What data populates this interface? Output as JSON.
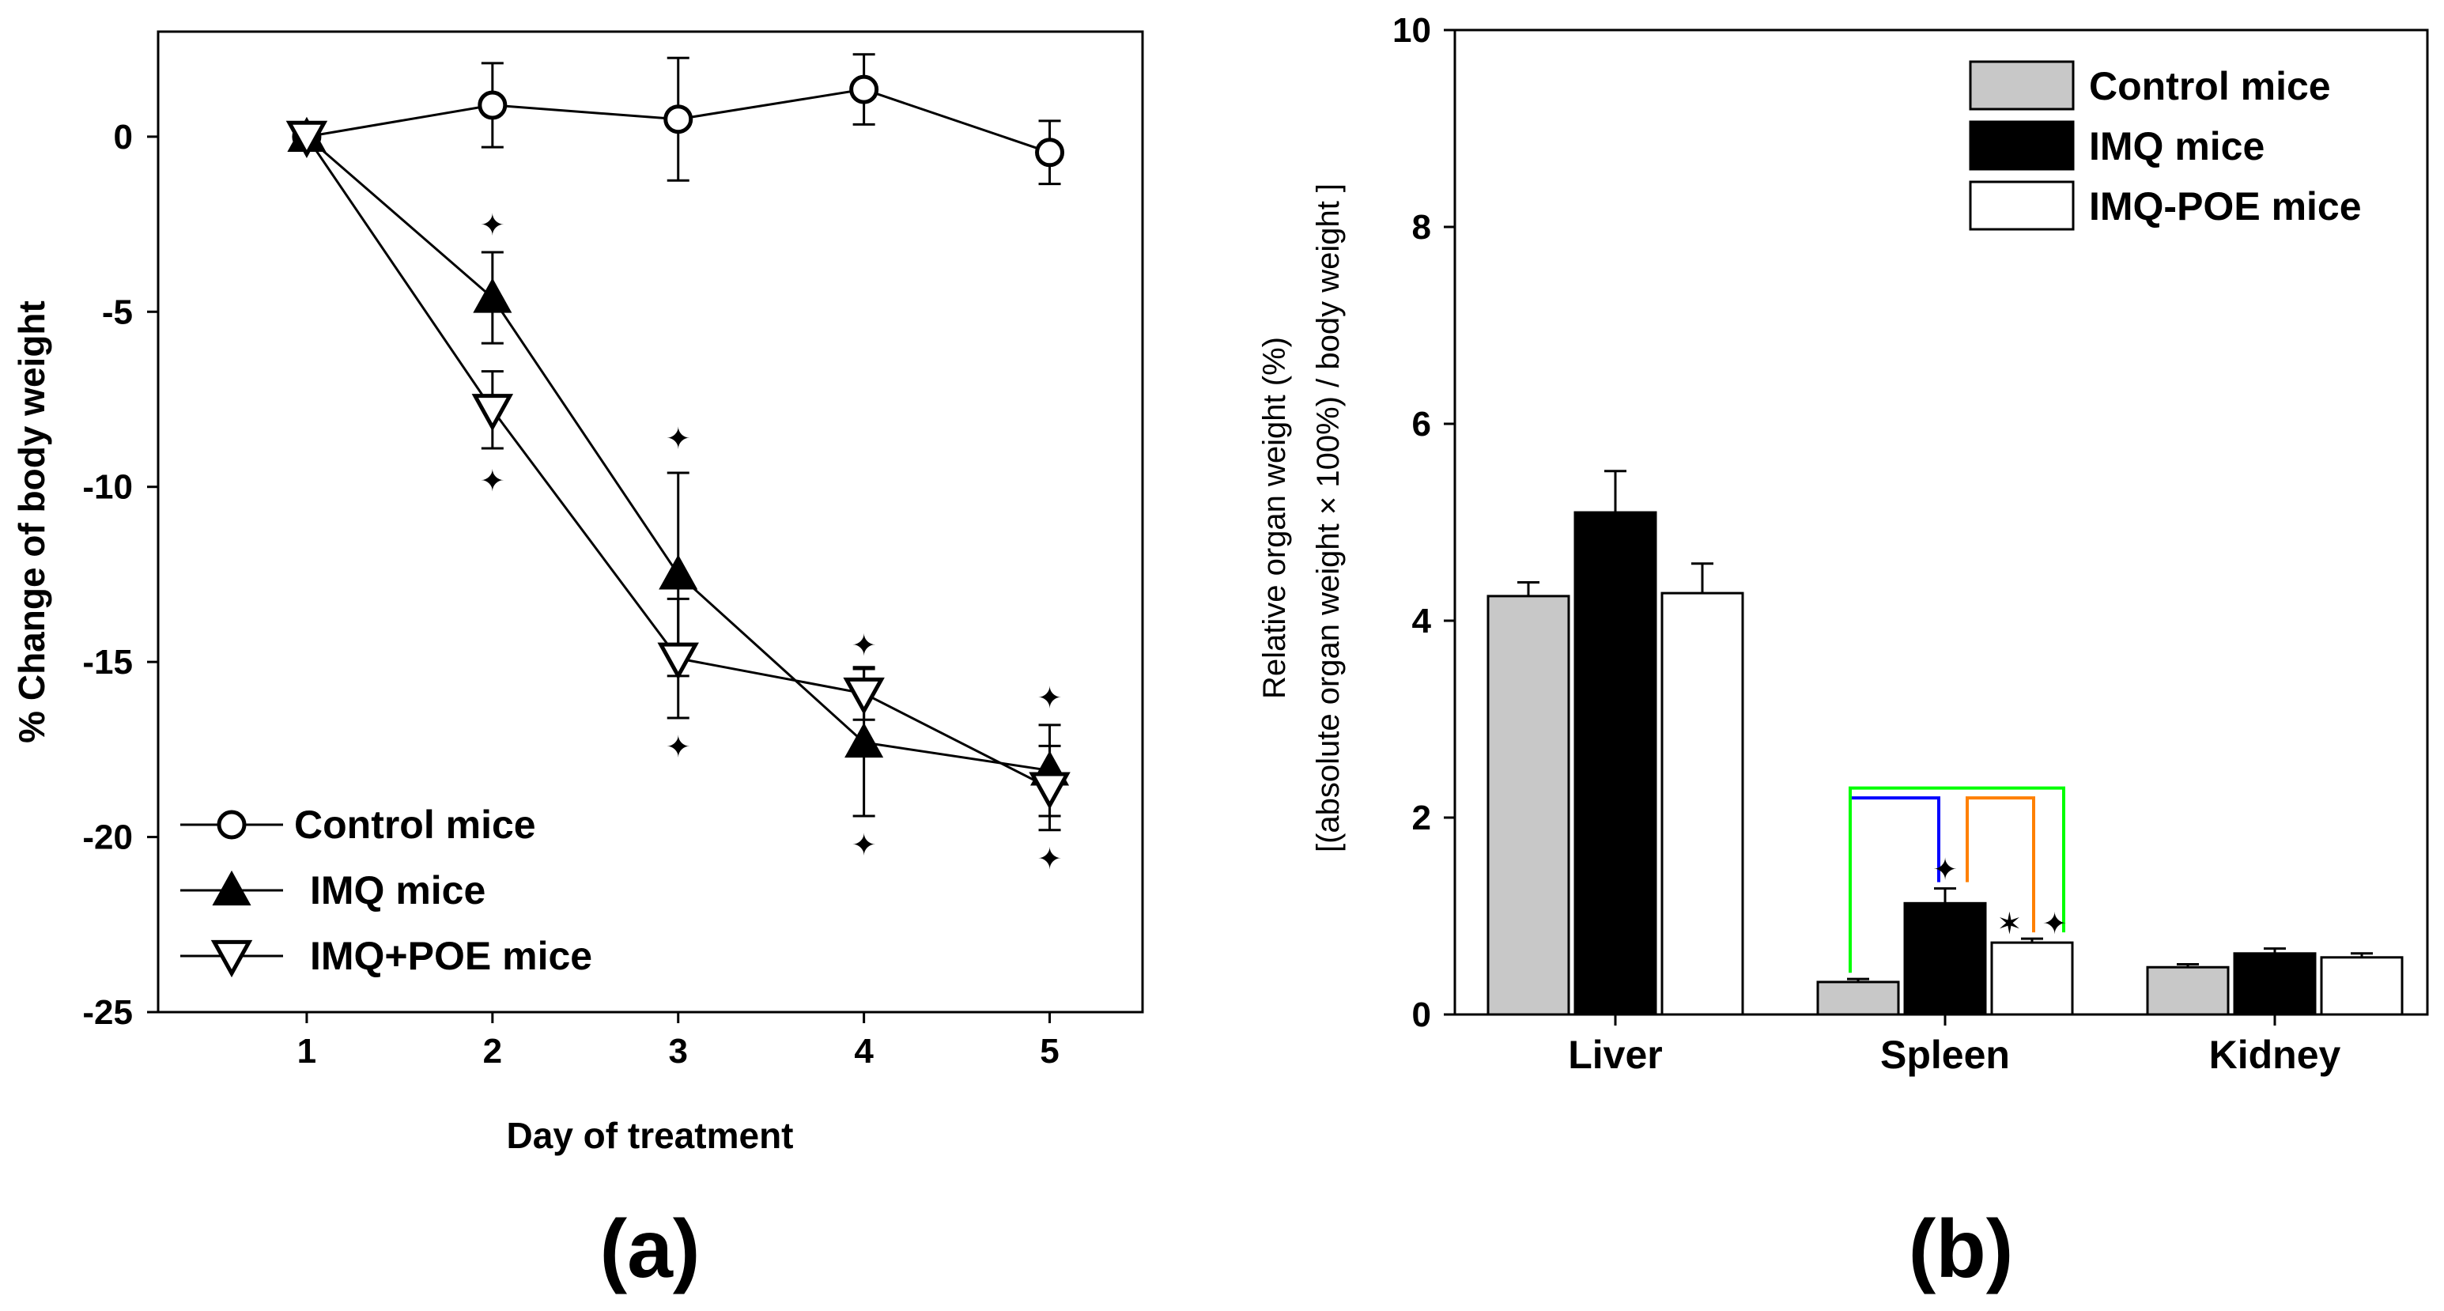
{
  "chart_data": [
    {
      "type": "line",
      "panel_label": "(a)",
      "xlabel": "Day of treatment",
      "ylabel": "% Change of body weight",
      "xlim": [
        0.2,
        5.5
      ],
      "ylim": [
        -25,
        3
      ],
      "x_ticks": [
        1,
        2,
        3,
        4,
        5
      ],
      "y_ticks": [
        0,
        -5,
        -10,
        -15,
        -20,
        -25
      ],
      "legend_position": "bottom-left",
      "series": [
        {
          "name": "Control mice",
          "marker": "open-circle",
          "x": [
            1,
            2,
            3,
            4,
            5
          ],
          "values": [
            0,
            0.9,
            0.5,
            1.35,
            -0.45
          ],
          "error": [
            0,
            1.2,
            1.75,
            1.0,
            0.9
          ]
        },
        {
          "name": "IMQ mice",
          "marker": "filled-triangle-up",
          "x": [
            1,
            2,
            3,
            4,
            5
          ],
          "values": [
            0,
            -4.6,
            -12.5,
            -17.3,
            -18.1
          ],
          "error": [
            0,
            1.3,
            2.9,
            2.1,
            1.3
          ]
        },
        {
          "name": "IMQ+POE mice",
          "marker": "open-triangle-down",
          "x": [
            1,
            2,
            3,
            4,
            5
          ],
          "values": [
            0,
            -7.8,
            -14.9,
            -15.9,
            -18.6
          ],
          "error": [
            0,
            1.1,
            1.7,
            0.75,
            1.2
          ]
        }
      ],
      "annotations": [
        {
          "symbol": "✦",
          "x": 2,
          "y": -2.5
        },
        {
          "symbol": "✦",
          "x": 2,
          "y": -9.8
        },
        {
          "symbol": "✦",
          "x": 3,
          "y": -8.6
        },
        {
          "symbol": "✦",
          "x": 3,
          "y": -17.4
        },
        {
          "symbol": "✦",
          "x": 4,
          "y": -14.5
        },
        {
          "symbol": "✦",
          "x": 4,
          "y": -20.2
        },
        {
          "symbol": "✦",
          "x": 5,
          "y": -16.0
        },
        {
          "symbol": "✦",
          "x": 5,
          "y": -20.6
        }
      ]
    },
    {
      "type": "bar",
      "panel_label": "(b)",
      "ylabel_line1": "Relative organ weight (%)",
      "ylabel_line2": "[(absolute organ weight × 100%) / body weight ]",
      "ylim": [
        0,
        10
      ],
      "y_ticks": [
        0,
        2,
        4,
        6,
        8,
        10
      ],
      "categories": [
        "Liver",
        "Spleen",
        "Kidney"
      ],
      "legend_position": "top-right",
      "series": [
        {
          "name": "Control mice",
          "color": "#c8c8c8",
          "values": [
            4.25,
            0.33,
            0.48
          ],
          "error": [
            0.14,
            0.03,
            0.03
          ]
        },
        {
          "name": "IMQ mice",
          "color": "#000000",
          "values": [
            5.1,
            1.13,
            0.62
          ],
          "error": [
            0.42,
            0.15,
            0.05
          ]
        },
        {
          "name": "IMQ-POE mice",
          "color": "#ffffff",
          "values": [
            4.28,
            0.73,
            0.58
          ],
          "error": [
            0.3,
            0.04,
            0.04
          ]
        }
      ],
      "significance_brackets": [
        {
          "from_series": 0,
          "to_series": 1,
          "category": "Spleen",
          "color": "#0000ff",
          "top": 2.2
        },
        {
          "from_series": 1,
          "to_series": 2,
          "category": "Spleen",
          "color": "#ff8000",
          "top": 2.2
        },
        {
          "from_series": 0,
          "to_series": 2,
          "category": "Spleen",
          "color": "#00ff00",
          "top": 2.3
        }
      ],
      "annotations": [
        {
          "symbol": "✦",
          "category": "Spleen",
          "series": 1,
          "y": 1.48
        },
        {
          "symbol": "✶",
          "category": "Spleen",
          "series": 2,
          "y": 0.93,
          "offset": -0.28
        },
        {
          "symbol": "✦",
          "category": "Spleen",
          "series": 2,
          "y": 0.93,
          "offset": 0.28
        }
      ]
    }
  ]
}
